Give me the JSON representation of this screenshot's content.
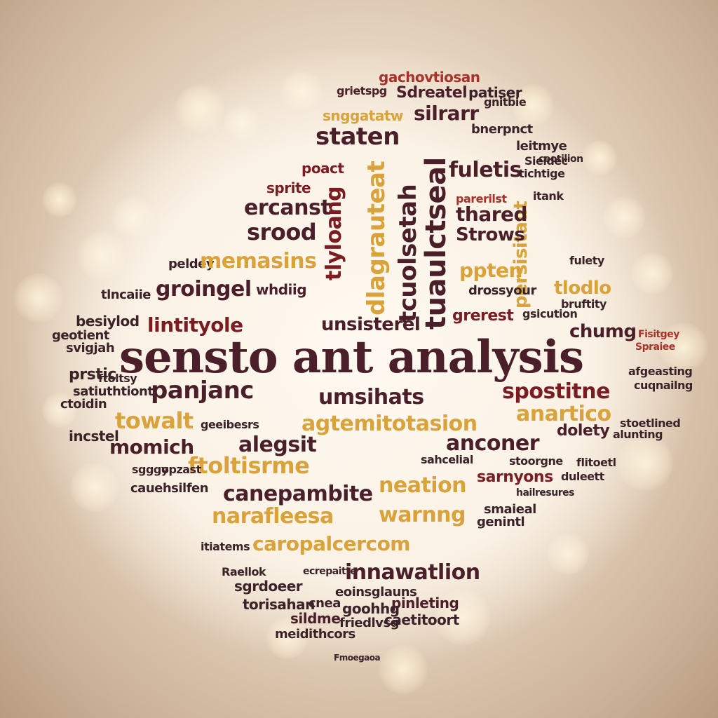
{
  "colors": {
    "maroon": "#7a1c22",
    "plum": "#4a1f2a",
    "red": "#a8322a",
    "gold": "#d9a23a",
    "dark": "#3a2228",
    "background": "#e9d8c4"
  },
  "words": {
    "headline": "sensto ant analysis",
    "w01": "gachovtiosan",
    "w02": "Sdreatel",
    "w03": "patiser",
    "w04": "snggatatw",
    "w05": "silrarr",
    "w06": "staten",
    "w07": "bnerpnct",
    "w08": "fuletis",
    "w09": "leitmye",
    "w10": "poact",
    "w11": "ercanst",
    "w12": "thared",
    "w13": "Strows",
    "w14": "srood",
    "w15": "memasins",
    "w16": "ppten",
    "w17": "groingel",
    "w18": "whdiig",
    "w19": "tlodlo",
    "w20": "lintityole",
    "w21": "unsisterel",
    "w22": "grerest",
    "w23": "chumg",
    "w24": "panjanc",
    "w25": "umsihats",
    "w26": "spostitne",
    "w27": "towalt",
    "w28": "agtemitotasion",
    "w29": "anartico",
    "w30": "momich",
    "w31": "alegsit",
    "w32": "anconer",
    "w33": "ftoltisrme",
    "w34": "sarnyons",
    "w35": "neation",
    "w36": "canepambite",
    "w37": "narafleesa",
    "w38": "warnng",
    "w39": "caropalcercom",
    "w40": "innawatlion",
    "w41": "pinleting",
    "w42": "goohhg",
    "w43": "sildme",
    "w44": "caetitoort",
    "w45": "meidithcors",
    "w46": "dolety",
    "w47": "genintl",
    "w48": "dlagrauteat",
    "w49": "tcuolsetah",
    "w50": "tuaulctseal",
    "w51": "persisitaut",
    "w52": "tlyloang",
    "w53": "fulety",
    "w54": "bruftity",
    "w55": "gnitbie",
    "w56": "grietspg",
    "w57": "prstic",
    "w58": "satiuthtiont",
    "w59": "ctoidin",
    "w60": "incstel",
    "w61": "geeibesrs",
    "w62": "peldey",
    "w63": "tlncaiie",
    "w64": "besiylod",
    "w65": "geotient",
    "w66": "svigjah",
    "w67": "ftoltsy",
    "w68": "Fisitgey",
    "w69": "Spraiee",
    "w70": "afgeasting",
    "w71": "cuqnailng",
    "w72": "stoetlined",
    "w73": "alunting",
    "w74": "flitoetl",
    "w75": "duleett",
    "w76": "hailresures",
    "w77": "smaieal",
    "w78": "eoinsglauns",
    "w79": "torisahan",
    "w80": "cnea",
    "w81": "friedlvsg",
    "w82": "Fmoegaoa",
    "w83": "itiatems",
    "w84": "Raellok",
    "w85": "sgrdoeer",
    "w86": "ecrepaitte",
    "w87": "sahcelial",
    "w88": "stoorgne",
    "w89": "cauehsilfen",
    "w90": "sgggy",
    "w91": "opzast",
    "w92": "itank",
    "w93": "ceotilion",
    "w94": "tichtige",
    "w95": "Sieidec",
    "w96": "gsicution",
    "w97": "parerilst",
    "w98": "drossyour",
    "w99": "sprite"
  }
}
